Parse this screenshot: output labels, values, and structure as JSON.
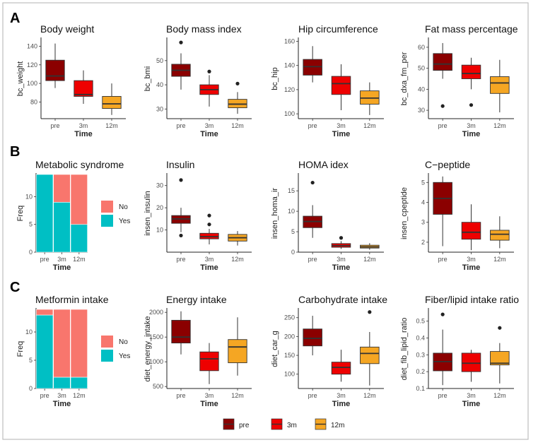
{
  "colors": {
    "pre": "#8b0000",
    "3m": "#ee0000",
    "12m": "#f5a623",
    "no": "#f8766d",
    "yes": "#00bfc4"
  },
  "panel_labels": [
    "A",
    "B",
    "C"
  ],
  "legend": {
    "items": [
      {
        "key": "pre",
        "label": "pre"
      },
      {
        "key": "3m",
        "label": "3m"
      },
      {
        "key": "12m",
        "label": "12m"
      }
    ]
  },
  "chart_data": [
    {
      "id": "bw",
      "type": "boxplot",
      "title": "Body weight",
      "xlabel": "Time",
      "ylabel": "bc_weight",
      "categories": [
        "pre",
        "3m",
        "12m"
      ],
      "ylim": [
        62,
        148
      ],
      "yticks": [
        80,
        100,
        120,
        140
      ],
      "boxes": [
        {
          "cat": "pre",
          "min": 95,
          "q1": 103,
          "median": 108,
          "q3": 125,
          "max": 143,
          "outliers": []
        },
        {
          "cat": "3m",
          "min": 78,
          "q1": 86,
          "median": 88,
          "q3": 103,
          "max": 114,
          "outliers": []
        },
        {
          "cat": "12m",
          "min": 66,
          "q1": 73,
          "median": 78,
          "q3": 86,
          "max": 100,
          "outliers": []
        }
      ]
    },
    {
      "id": "bmi",
      "type": "boxplot",
      "title": "Body mass index",
      "xlabel": "Time",
      "ylabel": "bc_bmi",
      "categories": [
        "pre",
        "3m",
        "12m"
      ],
      "ylim": [
        26,
        59
      ],
      "yticks": [
        30,
        40,
        50
      ],
      "boxes": [
        {
          "cat": "pre",
          "min": 38,
          "q1": 43.5,
          "median": 46,
          "q3": 48.5,
          "max": 53,
          "outliers": [
            57.5
          ]
        },
        {
          "cat": "3m",
          "min": 31,
          "q1": 36,
          "median": 38,
          "q3": 40,
          "max": 44,
          "outliers": [
            45.5
          ]
        },
        {
          "cat": "12m",
          "min": 28,
          "q1": 30.5,
          "median": 32,
          "q3": 34,
          "max": 37,
          "outliers": [
            40.5
          ]
        }
      ]
    },
    {
      "id": "hip",
      "type": "boxplot",
      "title": "Hip circumference",
      "xlabel": "Time",
      "ylabel": "bc_hip",
      "categories": [
        "pre",
        "3m",
        "12m"
      ],
      "ylim": [
        96,
        162
      ],
      "yticks": [
        100,
        120,
        140,
        160
      ],
      "boxes": [
        {
          "cat": "pre",
          "min": 126,
          "q1": 132,
          "median": 139,
          "q3": 145,
          "max": 156,
          "outliers": []
        },
        {
          "cat": "3m",
          "min": 103,
          "q1": 116,
          "median": 125,
          "q3": 131,
          "max": 141,
          "outliers": []
        },
        {
          "cat": "12m",
          "min": 99,
          "q1": 108,
          "median": 113,
          "q3": 119,
          "max": 126,
          "outliers": []
        }
      ]
    },
    {
      "id": "fat",
      "type": "boxplot",
      "title": "Fat mass percentage",
      "xlabel": "Time",
      "ylabel": "bc_dxa_fm_per",
      "categories": [
        "pre",
        "3m",
        "12m"
      ],
      "ylim": [
        26,
        64
      ],
      "yticks": [
        30,
        40,
        50,
        60
      ],
      "boxes": [
        {
          "cat": "pre",
          "min": 45,
          "q1": 49,
          "median": 52,
          "q3": 57,
          "max": 62,
          "outliers": [
            32
          ]
        },
        {
          "cat": "3m",
          "min": 40,
          "q1": 45,
          "median": 47.5,
          "q3": 51.5,
          "max": 55,
          "outliers": [
            32.5
          ]
        },
        {
          "cat": "12m",
          "min": 29,
          "q1": 38,
          "median": 43,
          "q3": 46,
          "max": 54,
          "outliers": []
        }
      ]
    },
    {
      "id": "ms",
      "type": "stacked-bar",
      "title": "Metabolic syndrome",
      "xlabel": "Time",
      "ylabel": "Freq",
      "categories": [
        "pre",
        "3m",
        "12m"
      ],
      "ylim": [
        0,
        14
      ],
      "yticks": [
        0,
        5,
        10
      ],
      "series": [
        {
          "name": "Yes",
          "key": "yes",
          "values": [
            14,
            9,
            5
          ]
        },
        {
          "name": "No",
          "key": "no",
          "values": [
            0,
            5,
            9
          ]
        }
      ],
      "legend": [
        {
          "key": "no",
          "label": "No"
        },
        {
          "key": "yes",
          "label": "Yes"
        }
      ]
    },
    {
      "id": "ins",
      "type": "boxplot",
      "title": "Insulin",
      "xlabel": "Time",
      "ylabel": "insen_insulin",
      "categories": [
        "pre",
        "3m",
        "12m"
      ],
      "ylim": [
        0,
        35
      ],
      "yticks": [
        10,
        20,
        30
      ],
      "boxes": [
        {
          "cat": "pre",
          "min": 9,
          "q1": 13,
          "median": 15,
          "q3": 16.5,
          "max": 20,
          "outliers": [
            32.5,
            7.5
          ]
        },
        {
          "cat": "3m",
          "min": 3.5,
          "q1": 6,
          "median": 7,
          "q3": 8.5,
          "max": 10.5,
          "outliers": [
            16.5,
            12.5
          ]
        },
        {
          "cat": "12m",
          "min": 3,
          "q1": 5,
          "median": 6.5,
          "q3": 8,
          "max": 9.5,
          "outliers": []
        }
      ]
    },
    {
      "id": "homa",
      "type": "boxplot",
      "title": "HOMA idex",
      "xlabel": "Time",
      "ylabel": "insen_homa_ir",
      "categories": [
        "pre",
        "3m",
        "12m"
      ],
      "ylim": [
        0,
        19
      ],
      "yticks": [
        0,
        5,
        10,
        15
      ],
      "boxes": [
        {
          "cat": "pre",
          "min": 3.5,
          "q1": 6,
          "median": 7.5,
          "q3": 8.8,
          "max": 11.5,
          "outliers": [
            17
          ]
        },
        {
          "cat": "3m",
          "min": 0.8,
          "q1": 1.2,
          "median": 1.6,
          "q3": 2.1,
          "max": 2.7,
          "outliers": [
            3.5
          ]
        },
        {
          "cat": "12m",
          "min": 0.6,
          "q1": 1,
          "median": 1.3,
          "q3": 1.7,
          "max": 2.2,
          "outliers": []
        }
      ]
    },
    {
      "id": "cpep",
      "type": "boxplot",
      "title": "C−peptide",
      "xlabel": "Time",
      "ylabel": "insen_cpeptide",
      "categories": [
        "pre",
        "3m",
        "12m"
      ],
      "ylim": [
        1.5,
        5.4
      ],
      "yticks": [
        2,
        3,
        4,
        5
      ],
      "boxes": [
        {
          "cat": "pre",
          "min": 1.8,
          "q1": 3.4,
          "median": 4.2,
          "q3": 5,
          "max": 5.3,
          "outliers": []
        },
        {
          "cat": "3m",
          "min": 1.6,
          "q1": 2.15,
          "median": 2.5,
          "q3": 3,
          "max": 3.9,
          "outliers": []
        },
        {
          "cat": "12m",
          "min": 1.7,
          "q1": 2.1,
          "median": 2.4,
          "q3": 2.6,
          "max": 3.3,
          "outliers": []
        }
      ]
    },
    {
      "id": "met",
      "type": "stacked-bar",
      "title": "Metformin intake",
      "xlabel": "Time",
      "ylabel": "Freq",
      "categories": [
        "pre",
        "3m",
        "12m"
      ],
      "ylim": [
        0,
        14
      ],
      "yticks": [
        0,
        5,
        10
      ],
      "series": [
        {
          "name": "Yes",
          "key": "yes",
          "values": [
            13,
            2,
            2
          ]
        },
        {
          "name": "No",
          "key": "no",
          "values": [
            1,
            12,
            12
          ]
        }
      ],
      "legend": [
        {
          "key": "no",
          "label": "No"
        },
        {
          "key": "yes",
          "label": "Yes"
        }
      ]
    },
    {
      "id": "energy",
      "type": "boxplot",
      "title": "Energy intake",
      "xlabel": "Time",
      "ylabel": "diet_energy_intake",
      "categories": [
        "pre",
        "3m",
        "12m"
      ],
      "ylim": [
        460,
        2060
      ],
      "yticks": [
        500,
        1000,
        1500,
        2000
      ],
      "boxes": [
        {
          "cat": "pre",
          "min": 1150,
          "q1": 1380,
          "median": 1500,
          "q3": 1840,
          "max": 2020,
          "outliers": []
        },
        {
          "cat": "3m",
          "min": 550,
          "q1": 820,
          "median": 1060,
          "q3": 1200,
          "max": 1380,
          "outliers": []
        },
        {
          "cat": "12m",
          "min": 720,
          "q1": 980,
          "median": 1300,
          "q3": 1450,
          "max": 1900,
          "outliers": []
        }
      ]
    },
    {
      "id": "carb",
      "type": "boxplot",
      "title": "Carbohydrate intake",
      "xlabel": "Time",
      "ylabel": "diet_car_g",
      "categories": [
        "pre",
        "3m",
        "12m"
      ],
      "ylim": [
        62,
        272
      ],
      "yticks": [
        100,
        150,
        200,
        250
      ],
      "boxes": [
        {
          "cat": "pre",
          "min": 150,
          "q1": 175,
          "median": 195,
          "q3": 220,
          "max": 255,
          "outliers": []
        },
        {
          "cat": "3m",
          "min": 80,
          "q1": 100,
          "median": 118,
          "q3": 132,
          "max": 165,
          "outliers": []
        },
        {
          "cat": "12m",
          "min": 70,
          "q1": 128,
          "median": 155,
          "q3": 172,
          "max": 212,
          "outliers": [
            265
          ]
        }
      ]
    },
    {
      "id": "fib",
      "type": "boxplot",
      "title": "Fiber/lipid intake ratio",
      "xlabel": "Time",
      "ylabel": "diet_fib_lipid_ratio",
      "categories": [
        "pre",
        "3m",
        "12m"
      ],
      "ylim": [
        0.1,
        0.57
      ],
      "yticks": [
        0.1,
        0.2,
        0.3,
        0.4,
        0.5
      ],
      "boxes": [
        {
          "cat": "pre",
          "min": 0.12,
          "q1": 0.205,
          "median": 0.26,
          "q3": 0.31,
          "max": 0.45,
          "outliers": [
            0.54
          ]
        },
        {
          "cat": "3m",
          "min": 0.14,
          "q1": 0.2,
          "median": 0.25,
          "q3": 0.31,
          "max": 0.33,
          "outliers": []
        },
        {
          "cat": "12m",
          "min": 0.13,
          "q1": 0.24,
          "median": 0.25,
          "q3": 0.32,
          "max": 0.37,
          "outliers": [
            0.46
          ]
        }
      ]
    }
  ]
}
